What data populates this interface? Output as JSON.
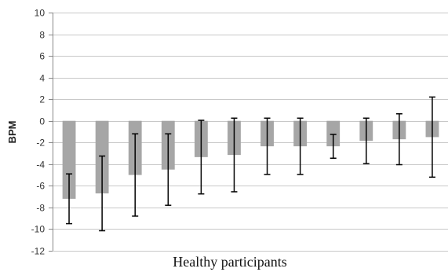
{
  "chart_data": {
    "type": "bar",
    "title": "",
    "xlabel": "Healthy participants",
    "ylabel": "BPM",
    "ylim": [
      -12,
      10
    ],
    "yticks": [
      10,
      8,
      6,
      4,
      2,
      0,
      -2,
      -4,
      -6,
      -8,
      -10,
      -12
    ],
    "grid": true,
    "legend": "none",
    "bar_color": "#a6a6a6",
    "error_bar_color": "#000000",
    "series": [
      {
        "values": [
          -7.2,
          -6.7,
          -5.0,
          -4.5,
          -3.35,
          -3.15,
          -2.35,
          -2.35,
          -2.35,
          -1.85,
          -1.7,
          -1.5
        ],
        "error": [
          2.3,
          3.45,
          3.8,
          3.3,
          3.4,
          3.4,
          2.6,
          2.6,
          1.1,
          2.1,
          2.35,
          3.7
        ]
      }
    ]
  }
}
